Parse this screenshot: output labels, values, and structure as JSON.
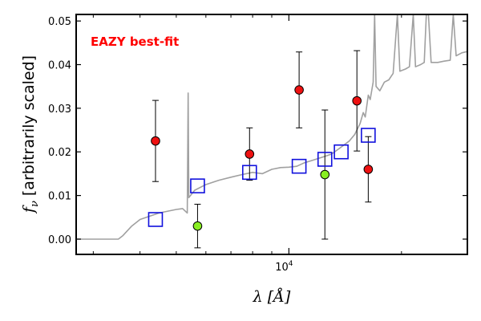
{
  "chart_data": {
    "type": "scatter",
    "annotation": "EAZY best-fit",
    "xlabel": "λ [Å]",
    "ylabel": "f_ν [arbitrarily scaled]",
    "xscale": "log",
    "xlim": [
      2700,
      30000
    ],
    "ylim": [
      -0.0035,
      0.0515
    ],
    "yticks": [
      0.0,
      0.01,
      0.02,
      0.03,
      0.04,
      0.05
    ],
    "ytick_labels": [
      "0.00",
      "0.01",
      "0.02",
      "0.03",
      "0.04",
      "0.05"
    ],
    "xtick_major": [
      {
        "value": 10000,
        "label": "10^4"
      }
    ],
    "xtick_minor": [
      3000,
      4000,
      5000,
      6000,
      7000,
      8000,
      9000,
      20000
    ],
    "grid": false,
    "colors": {
      "detected": "#ee1111",
      "low_sn": "#88ee22",
      "model_flux": "#1111dd",
      "sed": "#a0a0a0",
      "annotation": "#ff0000"
    },
    "observed": [
      {
        "x": 4400,
        "y": 0.0225,
        "err": 0.0093,
        "kind": "detected"
      },
      {
        "x": 5700,
        "y": 0.003,
        "err": 0.005,
        "kind": "low_sn"
      },
      {
        "x": 7850,
        "y": 0.0195,
        "err": 0.006,
        "kind": "detected"
      },
      {
        "x": 10650,
        "y": 0.0342,
        "err": 0.0087,
        "kind": "detected"
      },
      {
        "x": 12480,
        "y": 0.0148,
        "err": 0.0148,
        "kind": "low_sn"
      },
      {
        "x": 15200,
        "y": 0.0317,
        "err": 0.0115,
        "kind": "detected"
      },
      {
        "x": 16300,
        "y": 0.016,
        "err": 0.0075,
        "kind": "detected"
      }
    ],
    "model_fluxes": [
      {
        "x": 4400,
        "y": 0.0045
      },
      {
        "x": 5700,
        "y": 0.0122
      },
      {
        "x": 7850,
        "y": 0.0153
      },
      {
        "x": 10650,
        "y": 0.0167
      },
      {
        "x": 12480,
        "y": 0.0183
      },
      {
        "x": 13800,
        "y": 0.02
      },
      {
        "x": 16300,
        "y": 0.0238
      }
    ],
    "sed": [
      [
        2700,
        0.0
      ],
      [
        3500,
        0.0
      ],
      [
        3600,
        0.0008
      ],
      [
        3800,
        0.003
      ],
      [
        4000,
        0.0045
      ],
      [
        4500,
        0.006
      ],
      [
        5000,
        0.0068
      ],
      [
        5200,
        0.007
      ],
      [
        5350,
        0.006
      ],
      [
        5380,
        0.0335
      ],
      [
        5400,
        0.0095
      ],
      [
        5600,
        0.0112
      ],
      [
        6000,
        0.0125
      ],
      [
        6500,
        0.0135
      ],
      [
        7000,
        0.0142
      ],
      [
        7500,
        0.0148
      ],
      [
        8000,
        0.0153
      ],
      [
        8500,
        0.015
      ],
      [
        9000,
        0.016
      ],
      [
        9500,
        0.0164
      ],
      [
        10000,
        0.0165
      ],
      [
        10500,
        0.0167
      ],
      [
        11000,
        0.0175
      ],
      [
        11500,
        0.018
      ],
      [
        12000,
        0.0185
      ],
      [
        12500,
        0.019
      ],
      [
        13000,
        0.0195
      ],
      [
        13500,
        0.0205
      ],
      [
        14000,
        0.0215
      ],
      [
        14500,
        0.0225
      ],
      [
        15000,
        0.024
      ],
      [
        15500,
        0.0265
      ],
      [
        15800,
        0.029
      ],
      [
        16000,
        0.028
      ],
      [
        16300,
        0.033
      ],
      [
        16500,
        0.032
      ],
      [
        16800,
        0.036
      ],
      [
        16950,
        0.052
      ],
      [
        17100,
        0.035
      ],
      [
        17500,
        0.034
      ],
      [
        18000,
        0.036
      ],
      [
        18500,
        0.0365
      ],
      [
        19000,
        0.038
      ],
      [
        19500,
        0.052
      ],
      [
        19800,
        0.0385
      ],
      [
        20500,
        0.039
      ],
      [
        21000,
        0.0395
      ],
      [
        21500,
        0.052
      ],
      [
        21800,
        0.0395
      ],
      [
        22500,
        0.04
      ],
      [
        23000,
        0.0405
      ],
      [
        23300,
        0.052
      ],
      [
        23600,
        0.052
      ],
      [
        24000,
        0.0405
      ],
      [
        25000,
        0.0405
      ],
      [
        26000,
        0.0408
      ],
      [
        27000,
        0.041
      ],
      [
        27500,
        0.052
      ],
      [
        28000,
        0.042
      ],
      [
        29000,
        0.0427
      ],
      [
        30000,
        0.043
      ]
    ]
  }
}
